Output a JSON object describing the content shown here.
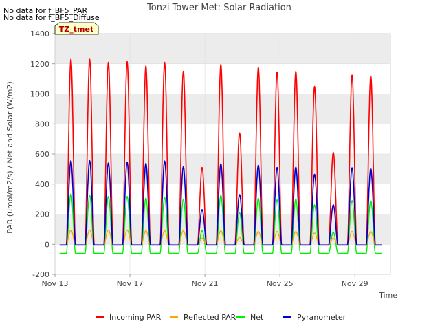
{
  "notes": [
    "No data for f_BF5_PAR",
    "No data for f_BF5_Diffuse"
  ],
  "badge": "TZ_tmet",
  "colors": {
    "incoming_par": "#ff0000",
    "reflected_par": "#ffa500",
    "net": "#00ee00",
    "pyranometer": "#0000cc",
    "band": "#ececec",
    "badge_bg": "#ffffc8",
    "badge_text": "#b00000"
  },
  "chart_data": {
    "type": "line",
    "title": "Tonzi Tower Met: Solar Radiation",
    "xlabel": "Time",
    "ylabel": "PAR (umol/m2/s) / Net and Solar (W/m2)",
    "xlim": [
      13,
      30.9
    ],
    "ylim": [
      -200,
      1400
    ],
    "x_ticks": [
      13,
      17,
      21,
      25,
      29
    ],
    "x_tick_labels": [
      "Nov 13",
      "Nov 17",
      "Nov 21",
      "Nov 25",
      "Nov 29"
    ],
    "y_ticks": [
      -200,
      0,
      200,
      400,
      600,
      800,
      1000,
      1200,
      1400
    ],
    "grid": true,
    "legend_position": "bottom",
    "day_centers": [
      13.85,
      14.85,
      15.85,
      16.85,
      17.85,
      18.85,
      19.85,
      20.85,
      21.85,
      22.85,
      23.85,
      24.85,
      25.85,
      26.85,
      27.85,
      28.85,
      29.85
    ],
    "series": [
      {
        "name": "Incoming PAR",
        "key": "incoming_par",
        "peaks": [
          1230,
          1230,
          1210,
          1215,
          1185,
          1210,
          1150,
          510,
          1195,
          740,
          1175,
          1145,
          1150,
          1050,
          610,
          1125,
          1120
        ],
        "night": -5
      },
      {
        "name": "Reflected PAR",
        "key": "reflected_par",
        "peaks": [
          95,
          95,
          95,
          95,
          90,
          90,
          90,
          40,
          90,
          45,
          85,
          85,
          85,
          75,
          40,
          85,
          85
        ],
        "night": -5
      },
      {
        "name": "Net",
        "key": "net",
        "peaks": [
          335,
          325,
          318,
          318,
          308,
          310,
          298,
          90,
          325,
          210,
          305,
          295,
          300,
          262,
          80,
          290,
          290
        ],
        "night": -60
      },
      {
        "name": "Pyranometer",
        "key": "pyranometer",
        "peaks": [
          555,
          555,
          540,
          545,
          538,
          553,
          515,
          230,
          535,
          330,
          525,
          510,
          512,
          465,
          262,
          508,
          502
        ],
        "night": -5
      }
    ]
  }
}
